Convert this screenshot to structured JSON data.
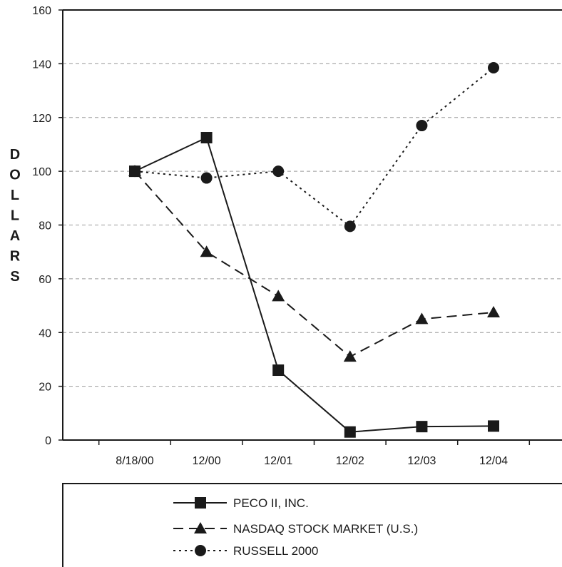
{
  "chart_data": {
    "type": "line",
    "categories": [
      "8/18/00",
      "12/00",
      "12/01",
      "12/02",
      "12/03",
      "12/04"
    ],
    "ylabel": "DOLLARS",
    "ylim": [
      0,
      160
    ],
    "yticks": [
      "0",
      "20",
      "40",
      "60",
      "80",
      "100",
      "120",
      "140",
      "160"
    ],
    "grid": true,
    "legend_position": "bottom",
    "series": [
      {
        "name": "PECO II, INC.",
        "values": [
          100,
          112.5,
          26,
          3,
          5,
          5.2
        ],
        "marker": "square",
        "dash": "solid"
      },
      {
        "name": "NASDAQ STOCK MARKET (U.S.)",
        "values": [
          100,
          70,
          53.5,
          31,
          45,
          47.5
        ],
        "marker": "triangle",
        "dash": "dashed"
      },
      {
        "name": "RUSSELL 2000",
        "values": [
          100,
          97.5,
          100,
          79.5,
          117,
          138.5
        ],
        "marker": "circle",
        "dash": "dotted"
      }
    ]
  }
}
